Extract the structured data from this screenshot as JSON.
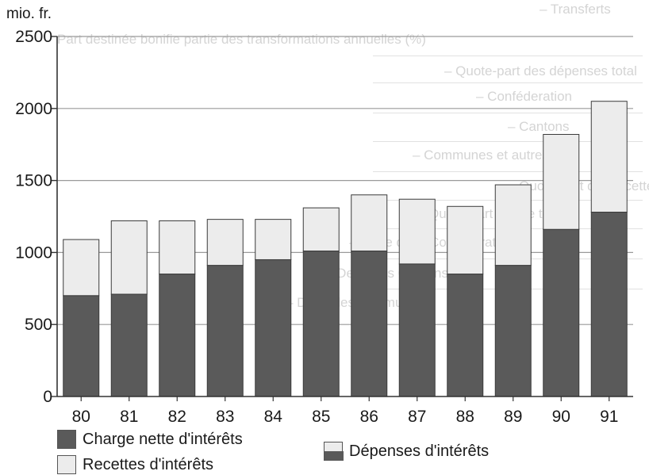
{
  "chart_data": {
    "type": "bar",
    "stacked": true,
    "ylabel": "mio. fr.",
    "ylim": [
      0,
      2500
    ],
    "yticks": [
      "0",
      "500",
      "1000",
      "1500",
      "2000",
      "2500"
    ],
    "grid": true,
    "categories": [
      "80",
      "81",
      "82",
      "83",
      "84",
      "85",
      "86",
      "87",
      "88",
      "89",
      "90",
      "91"
    ],
    "series": [
      {
        "name": "Charge nette d'intérêts",
        "color": "#5a5a5a",
        "values": [
          700,
          710,
          850,
          910,
          950,
          1010,
          1010,
          920,
          850,
          910,
          1160,
          1280
        ]
      },
      {
        "name": "Recettes d'intérêts",
        "color": "#ececec",
        "values": [
          390,
          510,
          370,
          320,
          280,
          300,
          390,
          450,
          470,
          560,
          660,
          770
        ]
      }
    ],
    "legend": {
      "placement": "bottom",
      "items": [
        {
          "label": "Charge nette d'intérêts",
          "style": "dark"
        },
        {
          "label": "Recettes d'intérêts",
          "style": "light"
        },
        {
          "label": "Dépenses d'intérêts",
          "style": "split"
        }
      ]
    }
  },
  "colors": {
    "bar_dark": "#5a5a5a",
    "bar_light": "#ececec",
    "bar_outline": "#3a3a3a",
    "gridline": "#9a9a9a",
    "axis": "#333333"
  },
  "background_text": [
    "– Transferts",
    "Part destinée bonifie partie des transformations annuelles (%)",
    "– Quote-part des dépenses total",
    "– Conféderation",
    "– Cantons",
    "– Communes et autres",
    "– Quote-part des recettes",
    "Quote-part fiscale totale",
    "– Dette de la Confédération",
    "– Dette des Cantons",
    "– Dette des communes"
  ]
}
